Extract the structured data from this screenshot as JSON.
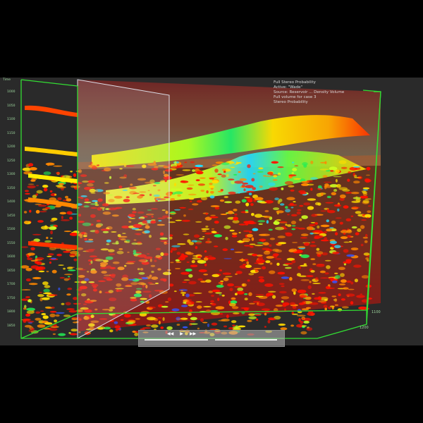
{
  "info_panel": {
    "lines": [
      "Full Stereo Probability",
      "Active: \"Wade\"",
      "Source: Reservoir ... Density Volume",
      "Full volume for case 3",
      "Stereo Probability"
    ]
  },
  "axes": {
    "corner_label": "Time",
    "depth_ticks": [
      "1000",
      "1050",
      "1100",
      "1150",
      "1200",
      "1250",
      "1300",
      "1350",
      "1400",
      "1450",
      "1500",
      "1550",
      "1600",
      "1650",
      "1700",
      "1750",
      "1800",
      "1850"
    ],
    "right_ticks": [
      "1100",
      "1200"
    ]
  },
  "controls": {
    "buttons": [
      "◀◀",
      "▶",
      "▶▶"
    ]
  },
  "colors": {
    "background": "#2a2a2a",
    "bounding_box": "#33dd33",
    "section_plane": "#c8c8d2",
    "probability_scale": [
      "#3355ff",
      "#22ddff",
      "#22ee55",
      "#ccff22",
      "#ffdd00",
      "#ff8800",
      "#ff1100"
    ]
  }
}
